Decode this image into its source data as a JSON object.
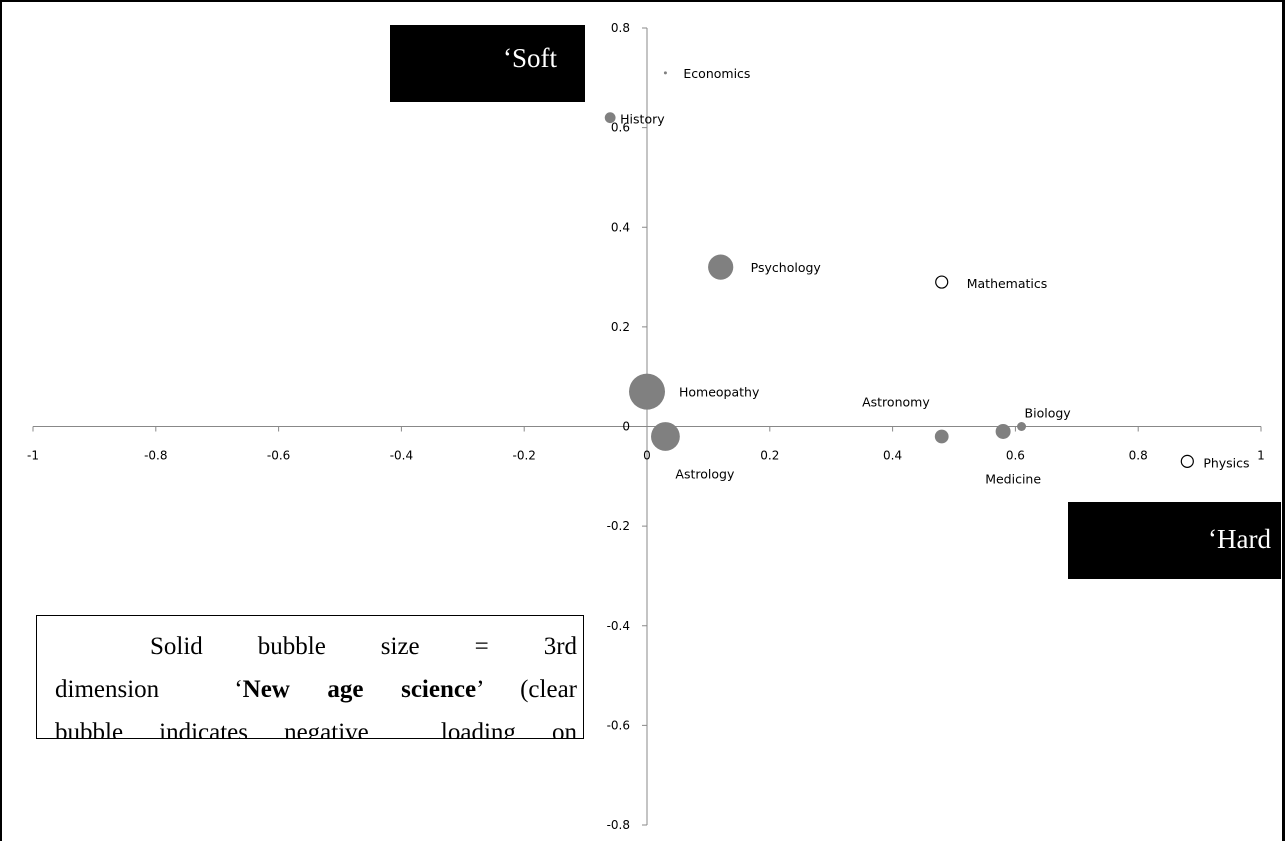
{
  "chart_data": {
    "type": "scatter",
    "subtype": "bubble",
    "title": "",
    "xlabel": "",
    "ylabel": "",
    "xlim": [
      -1,
      1
    ],
    "ylim": [
      -0.8,
      0.8
    ],
    "x_ticks": [
      "-1",
      "-0.8",
      "-0.6",
      "-0.4",
      "-0.2",
      "0",
      "0.2",
      "0.4",
      "0.6",
      "0.8",
      "1"
    ],
    "y_ticks": [
      "0.8",
      "0.6",
      "0.4",
      "0.2",
      "0",
      "-0.2",
      "-0.4",
      "-0.6",
      "-0.8"
    ],
    "grid": false,
    "bubble_size_meaning": "3rd dimension 'New age science' loading; clear bubble indicates negative loading",
    "colors": {
      "solid_bubble": "#808080",
      "clear_bubble_stroke": "#000000",
      "axis": "#888888"
    },
    "points": [
      {
        "label": "Economics",
        "x": 0.03,
        "y": 0.71,
        "size": 0.05,
        "negative": false
      },
      {
        "label": "History",
        "x": -0.06,
        "y": 0.62,
        "size": 0.18,
        "negative": false
      },
      {
        "label": "Psychology",
        "x": 0.12,
        "y": 0.32,
        "size": 0.42,
        "negative": false
      },
      {
        "label": "Mathematics",
        "x": 0.48,
        "y": 0.29,
        "size": 0.2,
        "negative": true
      },
      {
        "label": "Homeopathy",
        "x": 0.0,
        "y": 0.07,
        "size": 0.6,
        "negative": false
      },
      {
        "label": "Astrology",
        "x": 0.03,
        "y": -0.02,
        "size": 0.48,
        "negative": false
      },
      {
        "label": "Astronomy",
        "x": 0.48,
        "y": -0.02,
        "size": 0.23,
        "negative": false
      },
      {
        "label": "Medicine",
        "x": 0.58,
        "y": -0.01,
        "size": 0.25,
        "negative": false
      },
      {
        "label": "Biology",
        "x": 0.61,
        "y": 0.0,
        "size": 0.15,
        "negative": false
      },
      {
        "label": "Physics",
        "x": 0.88,
        "y": -0.07,
        "size": 0.2,
        "negative": true
      }
    ]
  },
  "annotations": {
    "soft": "‘Soft",
    "hard": "‘Hard",
    "note": {
      "line1": [
        "Solid",
        "bubble",
        "size",
        "=",
        "3rd"
      ],
      "line2_a": "dimension  ‘",
      "line2_bold": "New age science",
      "line2_b": "’ (clear",
      "line3": "bubble indicates negative  loading on"
    }
  }
}
